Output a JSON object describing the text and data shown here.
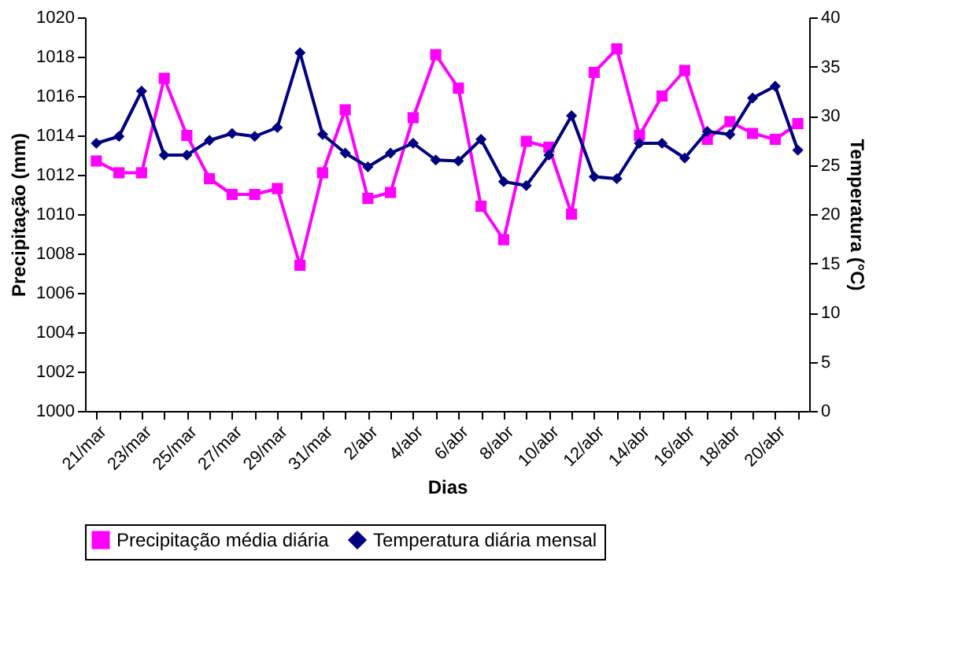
{
  "chart_data": {
    "type": "line",
    "xlabel": "Dias",
    "ylabel": "Precipitação (mm)",
    "y2label": "Temperatura (°C)",
    "categories": [
      "21/mar",
      null,
      "23/mar",
      null,
      "25/mar",
      null,
      "27/mar",
      null,
      "29/mar",
      null,
      "31/mar",
      null,
      "2/abr",
      null,
      "4/abr",
      null,
      "6/abr",
      null,
      "8/abr",
      null,
      "10/abr",
      null,
      "12/abr",
      null,
      "14/abr",
      null,
      "16/abr",
      null,
      "18/abr",
      null,
      "20/abr",
      null
    ],
    "series": [
      {
        "name": "Precipitação média diária",
        "color": "#ff00ff",
        "marker": "square",
        "values": [
          1012.7,
          1012.1,
          1012.1,
          1016.9,
          1014.0,
          1011.8,
          1011.0,
          1011.0,
          1011.3,
          1007.4,
          1012.1,
          1015.3,
          1010.8,
          1011.1,
          1014.9,
          1018.1,
          1016.4,
          1010.4,
          1008.7,
          1013.7,
          1013.4,
          1010.0,
          1017.2,
          1018.4,
          1014.0,
          1016.0,
          1017.3,
          1013.8,
          1014.7,
          1014.1,
          1013.8,
          1014.6
        ]
      },
      {
        "name": "Temperatura diária mensal",
        "color": "#000080",
        "marker": "diamond",
        "axis": "y2",
        "values": [
          27.2,
          27.9,
          32.5,
          26.0,
          26.0,
          27.5,
          28.2,
          27.9,
          28.8,
          36.4,
          28.1,
          26.2,
          24.8,
          26.2,
          27.2,
          25.5,
          25.4,
          27.6,
          23.3,
          22.9,
          26.0,
          30.0,
          23.8,
          23.6,
          27.2,
          27.2,
          25.7,
          28.4,
          28.1,
          31.8,
          33.0,
          26.5
        ]
      }
    ],
    "ylim": [
      1000,
      1020
    ],
    "yticks": [
      1000,
      1002,
      1004,
      1006,
      1008,
      1010,
      1012,
      1014,
      1016,
      1018,
      1020
    ],
    "y2lim": [
      0,
      40
    ],
    "y2ticks": [
      0,
      5,
      10,
      15,
      20,
      25,
      30,
      35,
      40
    ],
    "grid": false,
    "legend": "bottom"
  }
}
